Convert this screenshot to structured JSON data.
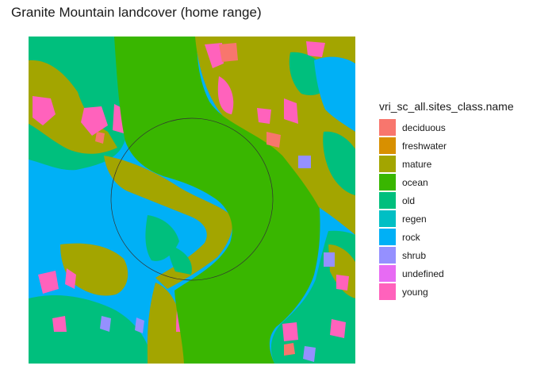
{
  "title": "Granite Mountain landcover (home range)",
  "legend": {
    "title": "vri_sc_all.sites_class.name",
    "items": [
      {
        "label": "deciduous",
        "color": "#F8766D"
      },
      {
        "label": "freshwater",
        "color": "#D89000"
      },
      {
        "label": "mature",
        "color": "#A3A500"
      },
      {
        "label": "ocean",
        "color": "#39B600"
      },
      {
        "label": "old",
        "color": "#00BF7D"
      },
      {
        "label": "regen",
        "color": "#00BFC4"
      },
      {
        "label": "rock",
        "color": "#00B0F6"
      },
      {
        "label": "shrub",
        "color": "#9590FF"
      },
      {
        "label": "undefined",
        "color": "#E76BF3"
      },
      {
        "label": "young",
        "color": "#FF62BC"
      }
    ]
  }
}
